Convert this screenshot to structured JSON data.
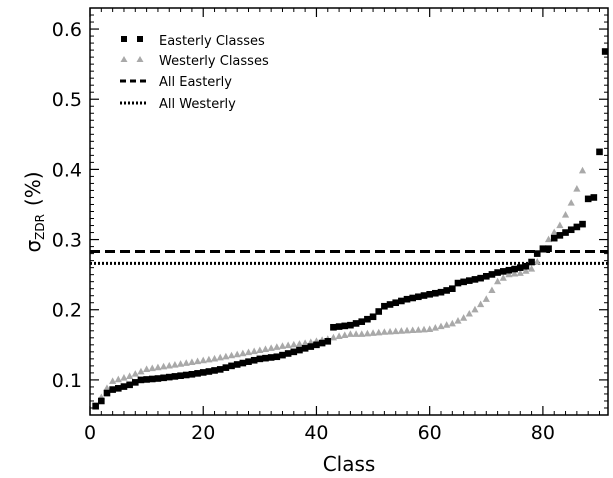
{
  "chart_data": {
    "type": "scatter",
    "xlabel": "Class",
    "ylabel_main": "σ",
    "ylabel_sub": "ZDR",
    "ylabel_unit": "(%)",
    "xlim": [
      0,
      91.5
    ],
    "ylim": [
      0.05,
      0.63
    ],
    "x_ticks": [
      0,
      20,
      40,
      60,
      80
    ],
    "x_tick_labels": [
      "0",
      "20",
      "40",
      "60",
      "80"
    ],
    "y_ticks": [
      0.1,
      0.2,
      0.3,
      0.4,
      0.5,
      0.6
    ],
    "y_tick_labels": [
      "0.1",
      "0.2",
      "0.3",
      "0.4",
      "0.5",
      "0.6"
    ],
    "grid": false,
    "legend_position": "top-left",
    "legend": [
      {
        "label": "Easterly Classes",
        "marker": "square"
      },
      {
        "label": "Westerly Classes",
        "marker": "triangle"
      },
      {
        "label": "All Easterly",
        "marker": "dashed-line"
      },
      {
        "label": "All Westerly",
        "marker": "dotted-line"
      }
    ],
    "reference_lines": [
      {
        "name": "All Easterly",
        "y": 0.283,
        "style": "dashed"
      },
      {
        "name": "All Westerly",
        "y": 0.266,
        "style": "dotted"
      }
    ],
    "anchor_points": {
      "easterly": [
        [
          0.8,
          0.062
        ],
        [
          1.5,
          0.065
        ],
        [
          2.5,
          0.075
        ],
        [
          3.3,
          0.085
        ],
        [
          5,
          0.088
        ],
        [
          7,
          0.093
        ],
        [
          9,
          0.1
        ],
        [
          12,
          0.102
        ],
        [
          15,
          0.105
        ],
        [
          18,
          0.108
        ],
        [
          21,
          0.112
        ],
        [
          23,
          0.115
        ],
        [
          25,
          0.12
        ],
        [
          28,
          0.126
        ],
        [
          30,
          0.13
        ],
        [
          33,
          0.133
        ],
        [
          36,
          0.14
        ],
        [
          40,
          0.15
        ],
        [
          42,
          0.155
        ],
        [
          43,
          0.175
        ],
        [
          46,
          0.178
        ],
        [
          48,
          0.183
        ],
        [
          50,
          0.19
        ],
        [
          52,
          0.205
        ],
        [
          54,
          0.21
        ],
        [
          56,
          0.215
        ],
        [
          60,
          0.222
        ],
        [
          62,
          0.225
        ],
        [
          64,
          0.23
        ],
        [
          65,
          0.238
        ],
        [
          69,
          0.245
        ],
        [
          72,
          0.253
        ],
        [
          75,
          0.258
        ],
        [
          77,
          0.262
        ],
        [
          78,
          0.268
        ],
        [
          79,
          0.28
        ],
        [
          80,
          0.287
        ],
        [
          81,
          0.287
        ],
        [
          82,
          0.302
        ],
        [
          84,
          0.31
        ],
        [
          86,
          0.318
        ],
        [
          87,
          0.322
        ],
        [
          88,
          0.358
        ],
        [
          89,
          0.36
        ],
        [
          90,
          0.425
        ],
        [
          91,
          0.568
        ]
      ],
      "westerly": [
        [
          0.8,
          0.058
        ],
        [
          2,
          0.075
        ],
        [
          3,
          0.088
        ],
        [
          4,
          0.098
        ],
        [
          7,
          0.105
        ],
        [
          10,
          0.115
        ],
        [
          14,
          0.12
        ],
        [
          18,
          0.125
        ],
        [
          22,
          0.13
        ],
        [
          26,
          0.136
        ],
        [
          30,
          0.142
        ],
        [
          34,
          0.148
        ],
        [
          38,
          0.152
        ],
        [
          42,
          0.158
        ],
        [
          44,
          0.162
        ],
        [
          46,
          0.165
        ],
        [
          48,
          0.165
        ],
        [
          52,
          0.168
        ],
        [
          56,
          0.17
        ],
        [
          60,
          0.172
        ],
        [
          64,
          0.18
        ],
        [
          66,
          0.188
        ],
        [
          68,
          0.2
        ],
        [
          70,
          0.215
        ],
        [
          72,
          0.24
        ],
        [
          74,
          0.25
        ],
        [
          76,
          0.252
        ],
        [
          78,
          0.258
        ],
        [
          79,
          0.268
        ],
        [
          80,
          0.285
        ],
        [
          81,
          0.3
        ],
        [
          82,
          0.31
        ],
        [
          83,
          0.32
        ],
        [
          84,
          0.335
        ],
        [
          85,
          0.352
        ],
        [
          86,
          0.372
        ],
        [
          87,
          0.398
        ]
      ]
    }
  }
}
